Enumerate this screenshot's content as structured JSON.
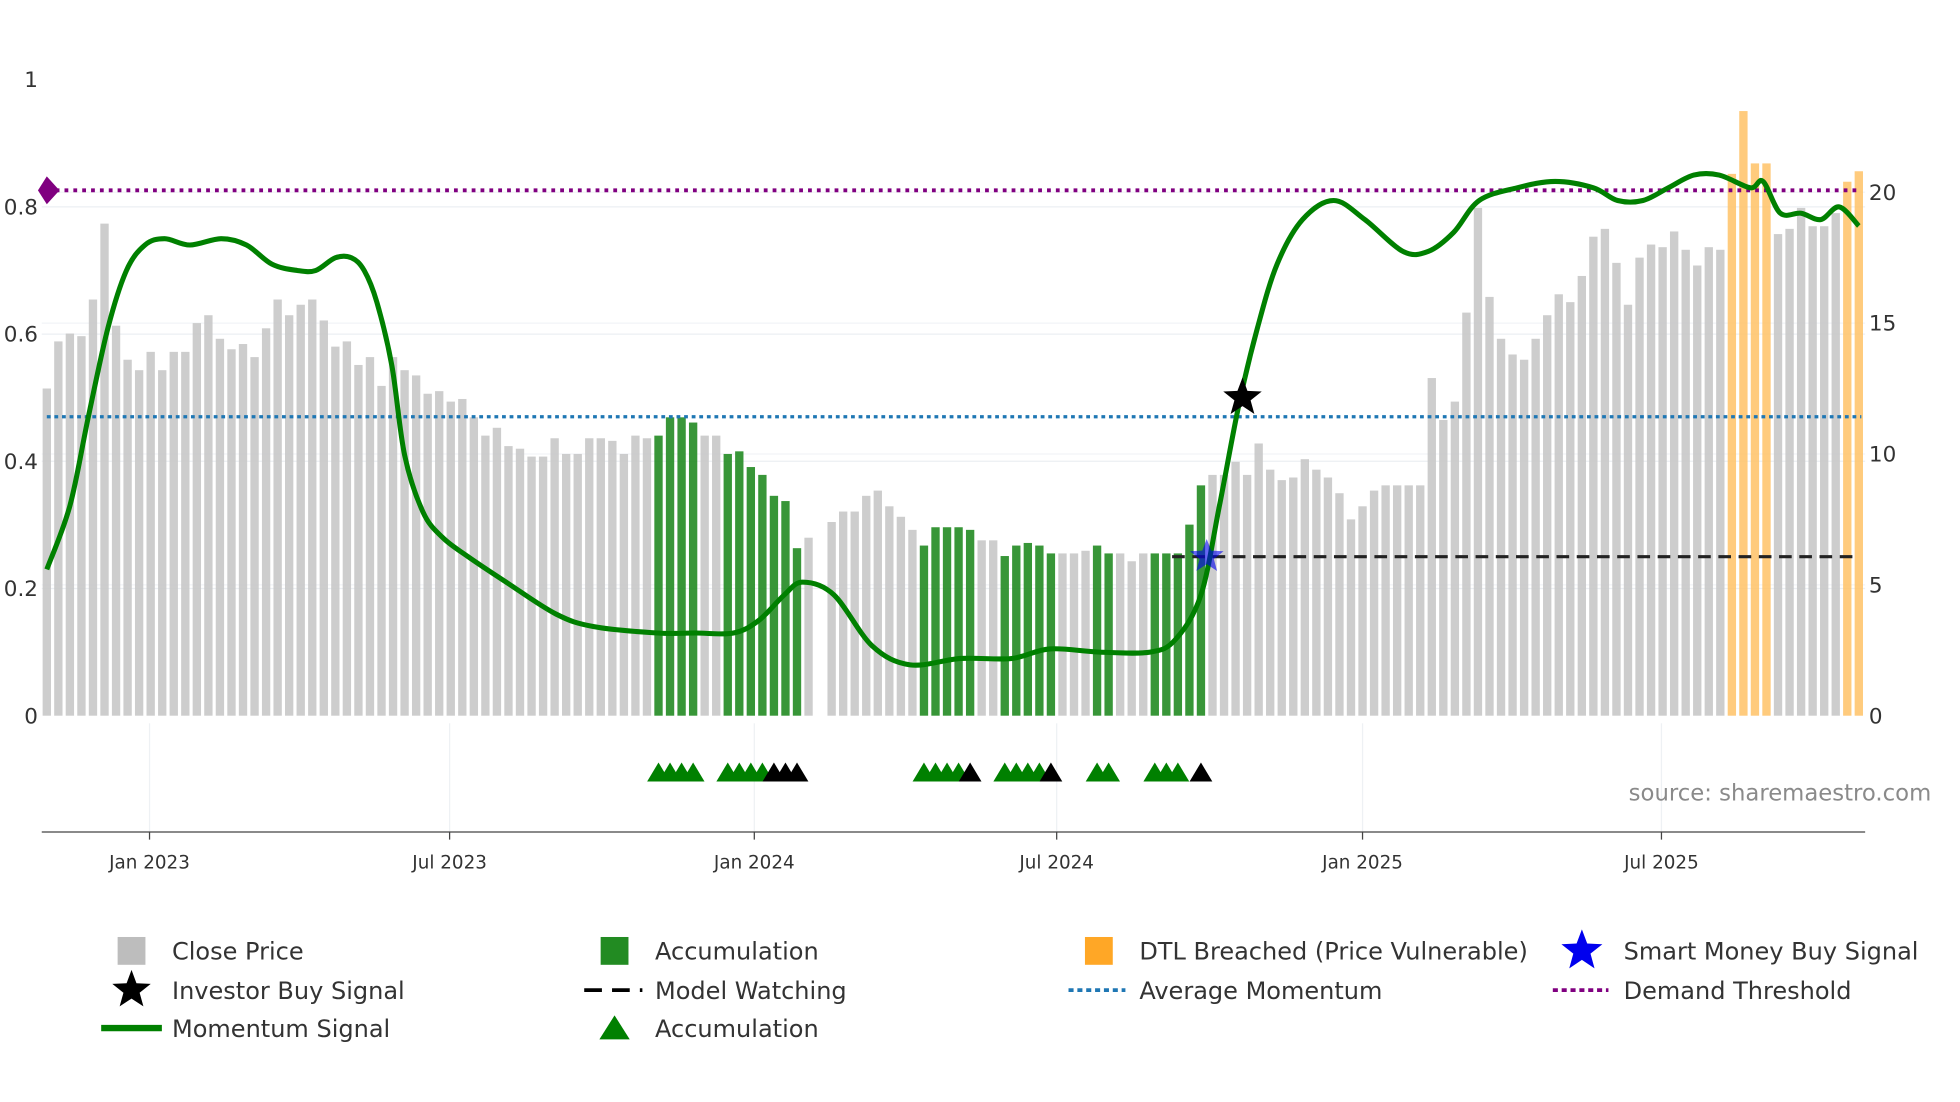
{
  "chart_data": {
    "type": "bar",
    "title": "",
    "source": "source: sharemaestro.com",
    "left_axis": {
      "ticks": [
        "0",
        "0.2",
        "0.4",
        "0.6",
        "0.8",
        "1"
      ],
      "values": [
        0,
        0.2,
        0.4,
        0.6,
        0.8,
        1
      ],
      "range": [
        0,
        1
      ]
    },
    "right_axis": {
      "ticks": [
        "0",
        "5",
        "10",
        "15",
        "20"
      ],
      "values": [
        0,
        5,
        10,
        15,
        20
      ],
      "range": [
        0,
        24.3
      ]
    },
    "x_axis": {
      "unit": "week",
      "ticks": [
        {
          "label": "Jan 2023",
          "week": 8.9
        },
        {
          "label": "Jul 2023",
          "week": 34.9
        },
        {
          "label": "Jan 2024",
          "week": 61.3
        },
        {
          "label": "Jul 2024",
          "week": 87.5
        },
        {
          "label": "Jan 2025",
          "week": 114.0
        },
        {
          "label": "Jul 2025",
          "week": 139.9
        }
      ]
    },
    "close_price_weekly": [
      12.5,
      14.3,
      14.6,
      14.5,
      15.9,
      18.8,
      14.9,
      13.6,
      13.2,
      13.9,
      13.2,
      13.9,
      13.9,
      15.0,
      15.3,
      14.4,
      14.0,
      14.2,
      13.7,
      14.8,
      15.9,
      15.3,
      15.7,
      15.9,
      15.1,
      14.1,
      14.3,
      13.4,
      13.7,
      12.6,
      13.7,
      13.2,
      13.0,
      12.3,
      12.4,
      12.0,
      12.1,
      11.4,
      10.7,
      11.0,
      10.3,
      10.2,
      9.9,
      9.9,
      10.6,
      10.0,
      10.0,
      10.6,
      10.6,
      10.5,
      10.0,
      10.7,
      10.6,
      10.7,
      11.4,
      11.4,
      11.2,
      10.7,
      10.7,
      10.0,
      10.1,
      9.5,
      9.2,
      8.4,
      8.2,
      6.4,
      6.8,
      0,
      7.4,
      7.8,
      7.8,
      8.4,
      8.6,
      8.0,
      7.6,
      7.1,
      6.5,
      7.2,
      7.2,
      7.2,
      7.1,
      6.7,
      6.7,
      6.1,
      6.5,
      6.6,
      6.5,
      6.2,
      6.2,
      6.2,
      6.3,
      6.5,
      6.2,
      6.2,
      5.9,
      6.2,
      6.2,
      6.2,
      6.2,
      7.3,
      8.8,
      9.2,
      9.2,
      9.7,
      9.2,
      10.4,
      9.4,
      9.0,
      9.1,
      9.8,
      9.4,
      9.1,
      8.5,
      7.5,
      8.0,
      8.6,
      8.8,
      8.8,
      8.8,
      8.8,
      12.9,
      11.3,
      12.0,
      15.4,
      19.4,
      16.0,
      14.4,
      13.8,
      13.6,
      14.4,
      15.3,
      16.1,
      15.8,
      16.8,
      18.3,
      18.6,
      17.3,
      15.7,
      17.5,
      18.0,
      17.9,
      18.5,
      17.8,
      17.2,
      17.9,
      17.8,
      20.7,
      23.1,
      21.1,
      21.1,
      18.4,
      18.6,
      19.4,
      18.7,
      18.7,
      19.2,
      20.4,
      20.8
    ],
    "accumulation_weeks": [
      53,
      54,
      55,
      56,
      59,
      60,
      61,
      62,
      63,
      64,
      65,
      76,
      77,
      78,
      79,
      80,
      83,
      84,
      85,
      86,
      87,
      91,
      92,
      96,
      97,
      98,
      99,
      100
    ],
    "dtl_breached_weeks": [
      146,
      147,
      148,
      149,
      156,
      157
    ],
    "momentum_signal": [
      [
        0,
        0.23
      ],
      [
        2,
        0.33
      ],
      [
        3.6,
        0.47
      ],
      [
        5.3,
        0.61
      ],
      [
        6.9,
        0.7
      ],
      [
        8.5,
        0.74
      ],
      [
        10.2,
        0.75
      ],
      [
        12.4,
        0.74
      ],
      [
        15.1,
        0.75
      ],
      [
        17.3,
        0.74
      ],
      [
        19.5,
        0.71
      ],
      [
        21.7,
        0.7
      ],
      [
        23.3,
        0.7
      ],
      [
        25,
        0.72
      ],
      [
        26.4,
        0.72
      ],
      [
        27.5,
        0.7
      ],
      [
        28.6,
        0.65
      ],
      [
        29.9,
        0.55
      ],
      [
        31,
        0.41
      ],
      [
        32.6,
        0.32
      ],
      [
        34.3,
        0.28
      ],
      [
        36.5,
        0.25
      ],
      [
        39.8,
        0.21
      ],
      [
        44.1,
        0.16
      ],
      [
        47.4,
        0.14
      ],
      [
        52.9,
        0.13
      ],
      [
        56.2,
        0.13
      ],
      [
        59.5,
        0.13
      ],
      [
        61.7,
        0.15
      ],
      [
        63.9,
        0.19
      ],
      [
        65.5,
        0.21
      ],
      [
        68.2,
        0.19
      ],
      [
        71.5,
        0.11
      ],
      [
        74.8,
        0.08
      ],
      [
        79.2,
        0.09
      ],
      [
        83.6,
        0.09
      ],
      [
        86.9,
        0.105
      ],
      [
        91.2,
        0.1
      ],
      [
        95.6,
        0.1
      ],
      [
        97.8,
        0.12
      ],
      [
        100,
        0.19
      ],
      [
        101.6,
        0.33
      ],
      [
        103.3,
        0.49
      ],
      [
        104.9,
        0.61
      ],
      [
        106.6,
        0.71
      ],
      [
        108.8,
        0.78
      ],
      [
        111.5,
        0.81
      ],
      [
        114.2,
        0.78
      ],
      [
        117.5,
        0.73
      ],
      [
        119.7,
        0.73
      ],
      [
        121.9,
        0.76
      ],
      [
        124.1,
        0.81
      ],
      [
        127.4,
        0.83
      ],
      [
        130.7,
        0.84
      ],
      [
        134,
        0.83
      ],
      [
        136.1,
        0.81
      ],
      [
        138.3,
        0.81
      ],
      [
        140.5,
        0.83
      ],
      [
        142.7,
        0.85
      ],
      [
        144.9,
        0.85
      ],
      [
        147.6,
        0.83
      ],
      [
        148.7,
        0.84
      ],
      [
        150.2,
        0.79
      ],
      [
        152,
        0.79
      ],
      [
        153.7,
        0.78
      ],
      [
        155.3,
        0.8
      ],
      [
        157,
        0.77
      ]
    ],
    "average_momentum": 0.47,
    "demand_threshold": 0.826,
    "model_watching": {
      "value": 0.25,
      "from_week": 97.5,
      "to_week": 157
    },
    "investor_buy_signal": {
      "week": 103.6,
      "value": 0.5
    },
    "smart_money_buy_signal": {
      "week": 100.5,
      "value": 0.25
    },
    "accumulation_markers": {
      "green": [
        53,
        54,
        55,
        56,
        59,
        60,
        61,
        62,
        76,
        77,
        78,
        79,
        83,
        84,
        85,
        86,
        91,
        92,
        96,
        97,
        98
      ],
      "black": [
        63,
        64,
        65,
        80,
        87,
        100
      ]
    },
    "legend": {
      "close_price": "Close Price",
      "accumulation_bar": "Accumulation",
      "dtl": "DTL Breached (Price Vulnerable)",
      "smart_money": "Smart Money Buy Signal",
      "investor_buy": "Investor Buy Signal",
      "model_watching": "Model Watching",
      "average_momentum": "Average Momentum",
      "demand_threshold": "Demand Threshold",
      "momentum": "Momentum Signal",
      "accumulation_marker": "Accumulation"
    },
    "colors": {
      "grey": "#c8c8c8",
      "green_bar": "#228b22",
      "orange": "#ffc266",
      "momentum": "#008000",
      "avg": "#1f77b4",
      "demand": "#800080",
      "smart": "#0000ee"
    }
  }
}
